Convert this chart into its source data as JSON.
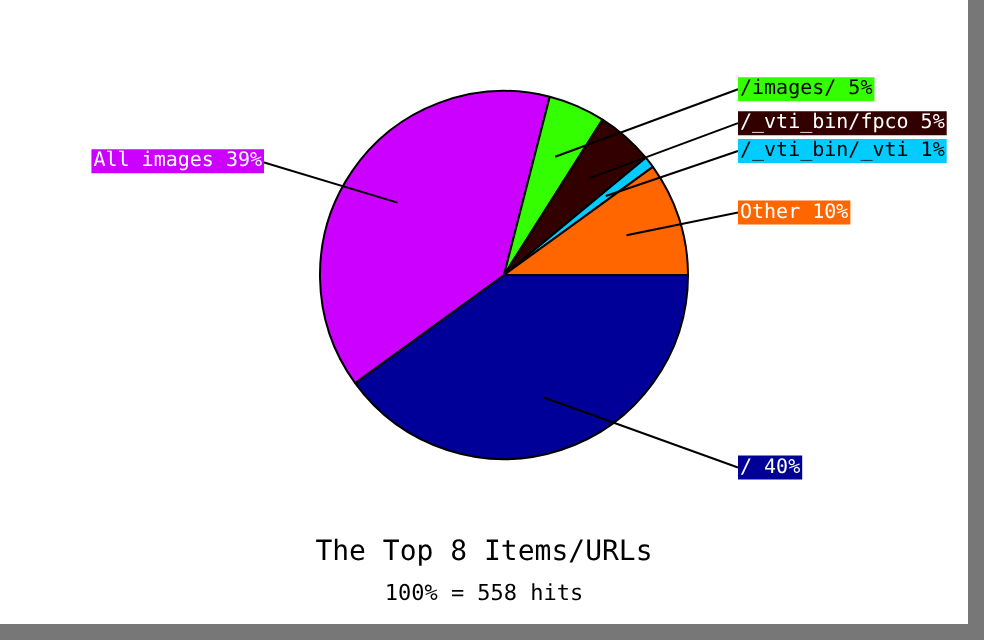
{
  "chart_data": {
    "type": "pie",
    "title": "The Top 8 Items/URLs",
    "subtitle": "100% = 558 hits",
    "categories": [
      "/",
      "All images",
      "/images/",
      "/_vti_bin/fpco",
      "/_vti_bin/_vti",
      "Other"
    ],
    "values": [
      40,
      39,
      5,
      5,
      1,
      10
    ],
    "value_labels": [
      "40%",
      "39%",
      "5%",
      "5%",
      "1%",
      "10%"
    ],
    "colors": [
      "#000099",
      "#cc00ff",
      "#33ff00",
      "#330000",
      "#00ccff",
      "#ff6600"
    ],
    "legend": false
  }
}
